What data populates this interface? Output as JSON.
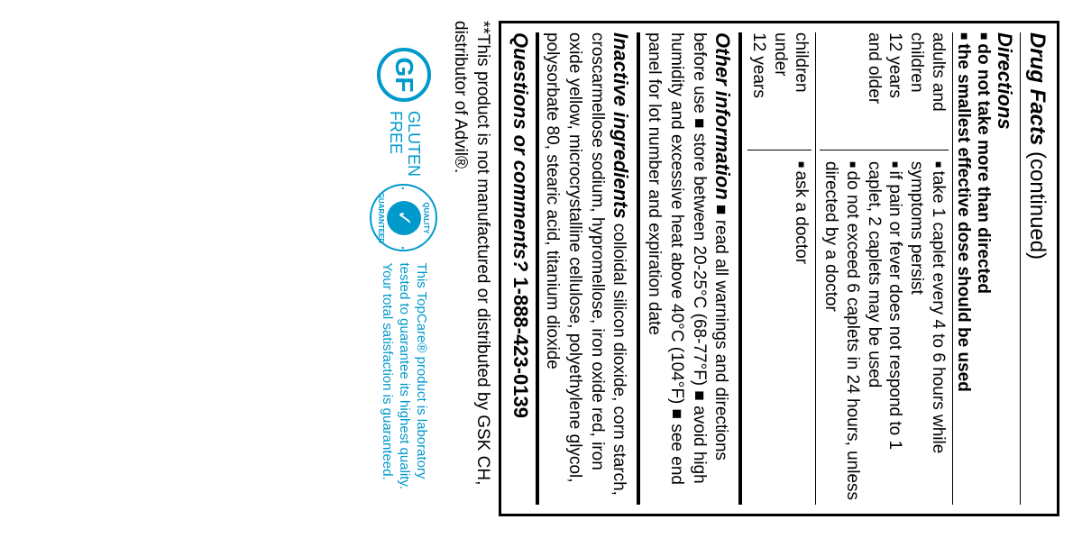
{
  "header": {
    "title_bold": "Drug Facts",
    "title_cont": " (continued)"
  },
  "directions": {
    "heading": "Directions",
    "warning1": "do not take more than directed",
    "warning2": "the smallest effective dose should be used",
    "adults": {
      "who_line1": "adults and",
      "who_line2": "children",
      "who_line3": "12 years",
      "who_line4": "and older",
      "item1": "take 1 caplet every 4 to 6 hours while symptoms persist",
      "item2": "if pain or fever does not respond to 1 caplet, 2 caplets may be used",
      "item3": "do not exceed 6 caplets in 24 hours, unless directed by a doctor"
    },
    "children": {
      "who_line1": "children",
      "who_line2": "under",
      "who_line3": "12 years",
      "item1": "ask a doctor"
    }
  },
  "other": {
    "heading": "Other information",
    "body": "  ■  read all warnings and directions before use   ■  store between 20-25°C (68-77°F)   ■  avoid high humidity and excessive heat above 40°C (104°F)   ■  see end panel for lot number and expiration date"
  },
  "inactive": {
    "heading": "Inactive ingredients",
    "body": " colloidal silicon dioxide, corn starch, croscarmellose sodium, hypromellose, iron oxide red, iron oxide yellow, microcrystalline cellulose, polyethylene glycol, polysorbate 80, stearic acid, titanium dioxide"
  },
  "questions": {
    "label": "Questions or comments?",
    "phone": " 1-888-423-0139"
  },
  "disclaimer": "**This product is not manufactured or distributed by GSK CH, distributor of Advil®.",
  "badges": {
    "gf_initials": "GF",
    "gf_line1": "GLUTEN",
    "gf_line2": "FREE",
    "quality_top": "QUALITY",
    "quality_bottom": "GUARANTEED",
    "quality_dot": "•",
    "quality_check": "✓",
    "quality_text_l1": "This TopCare® product is laboratory",
    "quality_text_l2": "tested to guarantee its highest quality.",
    "quality_text_l3": "Your total satisfaction is guaranteed.",
    "color": "#0099cc"
  }
}
